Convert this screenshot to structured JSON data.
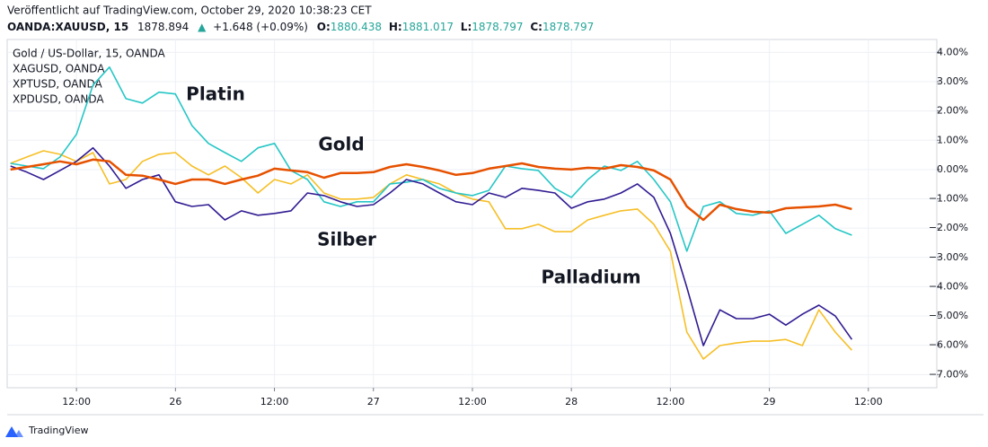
{
  "header": {
    "published": "Veröffentlicht auf TradingView.com, October 29, 2020 10:38:23 CET",
    "symbol": "OANDA:XAUUSD, 15",
    "last": "1878.894",
    "arrow": "▲",
    "change": "+1.648 (+0.09%)",
    "o_label": "O:",
    "o": "1880.438",
    "h_label": "H:",
    "h": "1881.017",
    "l_label": "L:",
    "l": "1878.797",
    "c_label": "C:",
    "c": "1878.797"
  },
  "chart_data": {
    "type": "line",
    "legend_items": [
      "Gold  / US-Dollar, 15, OANDA",
      "XAGUSD, OANDA",
      "XPTUSD, OANDA",
      "XPDUSD, OANDA"
    ],
    "x": [
      4,
      6,
      8,
      10,
      12,
      14,
      16,
      18,
      20,
      22,
      24,
      26,
      28,
      30,
      32,
      34,
      36,
      38,
      40,
      42,
      44,
      46,
      48,
      50,
      52,
      54,
      56,
      58,
      60,
      62,
      64,
      66,
      68,
      70,
      72,
      74,
      76,
      78,
      80,
      82,
      84,
      86,
      88,
      90,
      92,
      94,
      96,
      98,
      100,
      102,
      104,
      106
    ],
    "series": [
      {
        "name": "Gold",
        "color": "#e65100",
        "label_color": "#e65100",
        "values": [
          0,
          0.09,
          0.18,
          0.28,
          0.18,
          0.34,
          0.28,
          -0.18,
          -0.21,
          -0.34,
          -0.49,
          -0.34,
          -0.34,
          -0.49,
          -0.34,
          -0.21,
          0.03,
          -0.03,
          -0.09,
          -0.28,
          -0.12,
          -0.12,
          -0.09,
          0.09,
          0.18,
          0.09,
          -0.03,
          -0.18,
          -0.12,
          0.03,
          0.12,
          0.21,
          0.09,
          0.03,
          0,
          0.06,
          0.03,
          0.15,
          0.09,
          -0.03,
          -0.34,
          -1.26,
          -1.72,
          -1.2,
          -1.35,
          -1.44,
          -1.47,
          -1.32,
          -1.29,
          -1.26,
          -1.2,
          -1.35
        ]
      },
      {
        "name": "Silber",
        "color": "#311b92",
        "label_color": "#311b92",
        "values": [
          0.12,
          -0.09,
          -0.34,
          -0.03,
          0.28,
          0.74,
          0.12,
          -0.64,
          -0.34,
          -0.18,
          -1.1,
          -1.26,
          -1.2,
          -1.72,
          -1.41,
          -1.56,
          -1.5,
          -1.41,
          -0.8,
          -0.89,
          -1.1,
          -1.26,
          -1.2,
          -0.8,
          -0.34,
          -0.49,
          -0.8,
          -1.1,
          -1.2,
          -0.8,
          -0.95,
          -0.64,
          -0.71,
          -0.8,
          -1.32,
          -1.1,
          -1.01,
          -0.8,
          -0.49,
          -0.95,
          -2.18,
          -4.02,
          -6.01,
          -4.79,
          -5.09,
          -5.09,
          -4.94,
          -5.31,
          -4.94,
          -4.63,
          -5,
          -5.8
        ]
      },
      {
        "name": "Platin",
        "color": "#26c6c6",
        "label_color": "#4aa8e0",
        "values": [
          0.21,
          0.12,
          0.03,
          0.43,
          1.2,
          2.88,
          3.5,
          2.42,
          2.27,
          2.64,
          2.58,
          1.5,
          0.89,
          0.58,
          0.28,
          0.74,
          0.89,
          -0.03,
          -0.34,
          -1.1,
          -1.26,
          -1.1,
          -1.1,
          -0.49,
          -0.43,
          -0.34,
          -0.64,
          -0.8,
          -0.89,
          -0.71,
          0.12,
          0.03,
          -0.03,
          -0.64,
          -0.95,
          -0.34,
          0.12,
          -0.03,
          0.28,
          -0.34,
          -1.1,
          -2.79,
          -1.26,
          -1.1,
          -1.5,
          -1.56,
          -1.41,
          -2.18,
          -1.87,
          -1.56,
          -2.02,
          -2.24
        ]
      },
      {
        "name": "Palladium",
        "color": "#f6bf26",
        "label_color": "#f6bf26",
        "values": [
          0.21,
          0.43,
          0.64,
          0.52,
          0.28,
          0.58,
          -0.49,
          -0.34,
          0.28,
          0.52,
          0.58,
          0.12,
          -0.18,
          0.12,
          -0.28,
          -0.8,
          -0.34,
          -0.49,
          -0.18,
          -0.8,
          -1.01,
          -1.01,
          -0.95,
          -0.49,
          -0.18,
          -0.34,
          -0.49,
          -0.8,
          -1.01,
          -1.1,
          -2.02,
          -2.02,
          -1.87,
          -2.12,
          -2.12,
          -1.72,
          -1.56,
          -1.41,
          -1.35,
          -1.87,
          -2.79,
          -5.55,
          -6.47,
          -6.01,
          -5.92,
          -5.86,
          -5.86,
          -5.8,
          -6.01,
          -4.79,
          -5.55,
          -6.17
        ]
      }
    ],
    "xlim": [
      3.6,
      116.3
    ],
    "xticks": [
      {
        "value": 12,
        "label": "12:00"
      },
      {
        "value": 24,
        "label": "26"
      },
      {
        "value": 36,
        "label": "12:00"
      },
      {
        "value": 48,
        "label": "27"
      },
      {
        "value": 60,
        "label": "12:00"
      },
      {
        "value": 72,
        "label": "28"
      },
      {
        "value": 84,
        "label": "12:00"
      },
      {
        "value": 96,
        "label": "29"
      },
      {
        "value": 108,
        "label": "12:00"
      }
    ],
    "ylim": [
      -7.45,
      4.44
    ],
    "yticks": [
      {
        "value": 4,
        "label": "4.00%"
      },
      {
        "value": 3,
        "label": "3.00%"
      },
      {
        "value": 2,
        "label": "2.00%"
      },
      {
        "value": 1,
        "label": "1.00%"
      },
      {
        "value": 0,
        "label": "0.00%"
      },
      {
        "value": -1,
        "label": "−1.00%"
      },
      {
        "value": -2,
        "label": "−2.00%"
      },
      {
        "value": -3,
        "label": "−3.00%"
      },
      {
        "value": -4,
        "label": "−4.00%"
      },
      {
        "value": -5,
        "label": "−5.00%"
      },
      {
        "value": -6,
        "label": "−6.00%"
      },
      {
        "value": -7,
        "label": "−7.00%"
      }
    ],
    "grid": true
  },
  "footer": {
    "brand": "TradingView"
  }
}
